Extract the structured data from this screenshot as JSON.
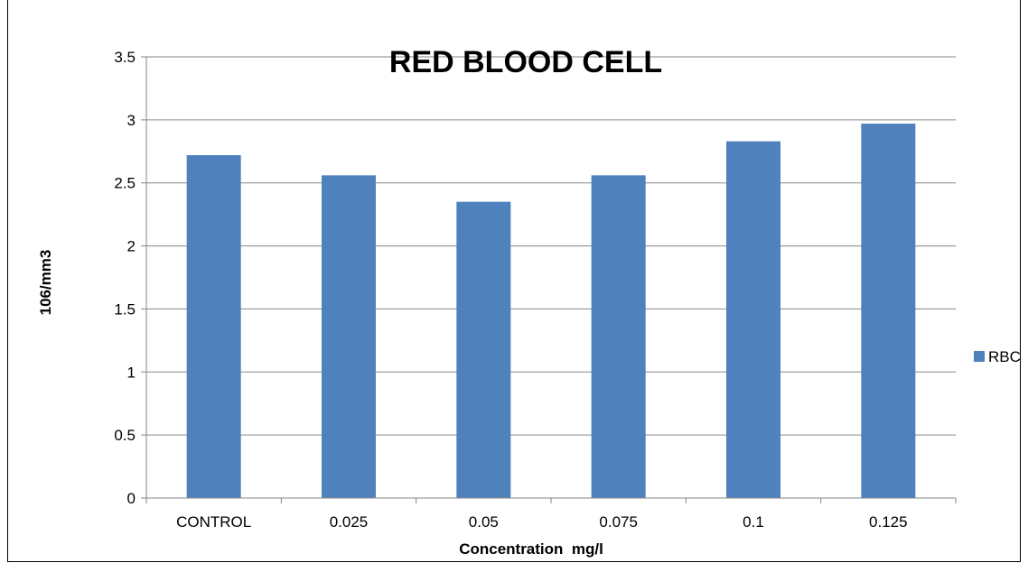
{
  "chart_data": {
    "type": "bar",
    "title": "RED BLOOD CELL",
    "xlabel": "Concentration  mg/l",
    "ylabel": "106/mm3",
    "categories": [
      "CONTROL",
      "0.025",
      "0.05",
      "0.075",
      "0.1",
      "0.125"
    ],
    "series": [
      {
        "name": "RBC",
        "values": [
          2.72,
          2.56,
          2.35,
          2.56,
          2.83,
          2.97
        ],
        "color": "#4f81bd"
      }
    ],
    "ylim": [
      0,
      3.5
    ],
    "yticks": [
      "0",
      "0.5",
      "1",
      "1.5",
      "2",
      "2.5",
      "3",
      "3.5"
    ],
    "grid": true,
    "legend_position": "right"
  }
}
